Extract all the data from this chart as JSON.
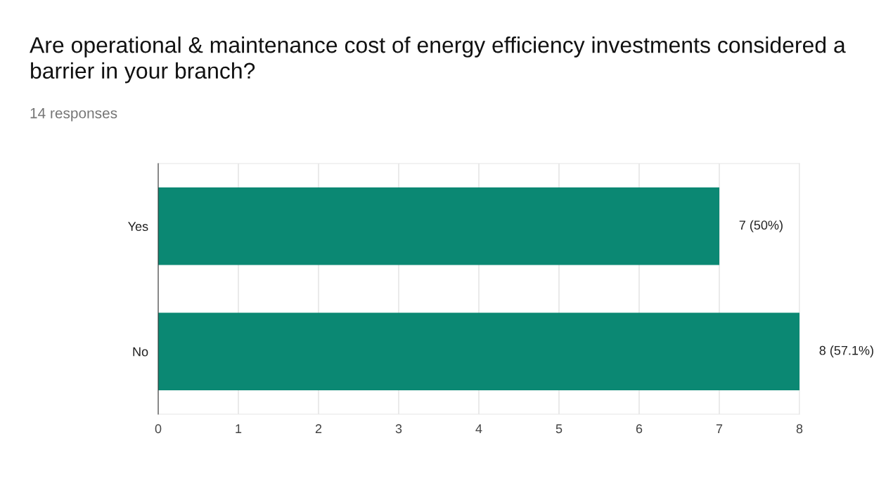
{
  "chart_data": {
    "type": "bar",
    "orientation": "horizontal",
    "title": "Are operational & maintenance cost of energy efficiency investments considered a barrier in your branch?",
    "subtitle": "14 responses",
    "categories": [
      "Yes",
      "No"
    ],
    "values": [
      7,
      8
    ],
    "color": "#0b8873",
    "value_labels": [
      "7 (50%)",
      "8 (57.1%)"
    ],
    "xlim": [
      0,
      8
    ],
    "xticks": [
      0,
      1,
      2,
      3,
      4,
      5,
      6,
      7,
      8
    ],
    "grid": "x",
    "legend": false
  }
}
